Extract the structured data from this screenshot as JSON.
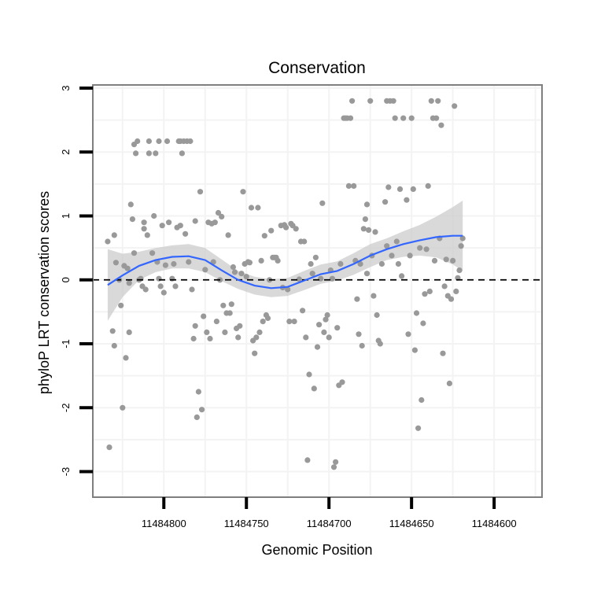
{
  "chart_data": {
    "type": "scatter",
    "title": "Conservation",
    "xlabel": "Genomic Position",
    "ylabel": "phyloP LRT conservation scores",
    "xlim": [
      11484843,
      11484571
    ],
    "x_reversed": true,
    "ylim": [
      -3.4,
      3.05
    ],
    "x_ticks": [
      11484800,
      11484750,
      11484700,
      11484650,
      11484600
    ],
    "x_tick_labels": [
      "11484800",
      "11484750",
      "11484700",
      "11484650",
      "11484600"
    ],
    "y_ticks": [
      -3,
      -2,
      -1,
      0,
      1,
      2,
      3
    ],
    "y_tick_labels": [
      "-3",
      "-2",
      "-1",
      "0",
      "1",
      "2",
      "3"
    ],
    "reference_line": 0,
    "colors": {
      "points": "#999999",
      "smooth_line": "#3366ff",
      "confidence_band": "#cccccc",
      "panel_border": "#7f7f7f",
      "grid": "#f3f3f3"
    },
    "points": [
      [
        11484834,
        0.6
      ],
      [
        11484833,
        -2.62
      ],
      [
        11484831,
        -0.8
      ],
      [
        11484830,
        -1.03
      ],
      [
        11484830,
        0.7
      ],
      [
        11484829,
        0.27
      ],
      [
        11484827,
        0
      ],
      [
        11484826,
        -0.4
      ],
      [
        11484825,
        -2.0
      ],
      [
        11484824,
        0.22
      ],
      [
        11484823,
        -1.22
      ],
      [
        11484822,
        0.18
      ],
      [
        11484821,
        -0.82
      ],
      [
        11484821,
        -0.05
      ],
      [
        11484820,
        1.18
      ],
      [
        11484819,
        0.95
      ],
      [
        11484818,
        0.42
      ],
      [
        11484818,
        2.12
      ],
      [
        11484817,
        1.98
      ],
      [
        11484816,
        2.17
      ],
      [
        11484815,
        0
      ],
      [
        11484814,
        0.02
      ],
      [
        11484813,
        -0.1
      ],
      [
        11484812,
        0.8
      ],
      [
        11484812,
        0.9
      ],
      [
        11484811,
        -0.15
      ],
      [
        11484810,
        0.7
      ],
      [
        11484809,
        1.98
      ],
      [
        11484809,
        2.17
      ],
      [
        11484807,
        0.42
      ],
      [
        11484806,
        1.0
      ],
      [
        11484805,
        1.98
      ],
      [
        11484804,
        0.28
      ],
      [
        11484803,
        0.02
      ],
      [
        11484803,
        2.17
      ],
      [
        11484802,
        -0.1
      ],
      [
        11484801,
        0.85
      ],
      [
        11484800,
        -0.2
      ],
      [
        11484799,
        0.23
      ],
      [
        11484798,
        2.17
      ],
      [
        11484797,
        0.9
      ],
      [
        11484795,
        0.02
      ],
      [
        11484794,
        0.25
      ],
      [
        11484793,
        -0.1
      ],
      [
        11484792,
        0.82
      ],
      [
        11484791,
        2.17
      ],
      [
        11484790,
        0.85
      ],
      [
        11484790,
        2.17
      ],
      [
        11484789,
        1.98
      ],
      [
        11484788,
        2.17
      ],
      [
        11484787,
        0.72
      ],
      [
        11484786,
        2.17
      ],
      [
        11484785,
        0.28
      ],
      [
        11484784,
        2.17
      ],
      [
        11484783,
        -0.15
      ],
      [
        11484782,
        -0.92
      ],
      [
        11484781,
        0.92
      ],
      [
        11484781,
        -0.72
      ],
      [
        11484780,
        -2.15
      ],
      [
        11484779,
        -1.75
      ],
      [
        11484778,
        1.38
      ],
      [
        11484777,
        -2.03
      ],
      [
        11484776,
        -0.57
      ],
      [
        11484775,
        0.16
      ],
      [
        11484774,
        -0.82
      ],
      [
        11484773,
        0.9
      ],
      [
        11484772,
        -0.92
      ],
      [
        11484771,
        0.88
      ],
      [
        11484770,
        0.28
      ],
      [
        11484769,
        0.9
      ],
      [
        11484768,
        -0.65
      ],
      [
        11484767,
        1.05
      ],
      [
        11484766,
        0.0
      ],
      [
        11484765,
        0.99
      ],
      [
        11484764,
        -0.4
      ],
      [
        11484763,
        -0.82
      ],
      [
        11484762,
        -0.52
      ],
      [
        11484761,
        0.7
      ],
      [
        11484760,
        -0.52
      ],
      [
        11484759,
        -0.38
      ],
      [
        11484758,
        0.2
      ],
      [
        11484757,
        0.12
      ],
      [
        11484756,
        -0.76
      ],
      [
        11484755,
        -0.9
      ],
      [
        11484754,
        -0.72
      ],
      [
        11484753,
        0.1
      ],
      [
        11484752,
        1.38
      ],
      [
        11484751,
        0.25
      ],
      [
        11484750,
        0.05
      ],
      [
        11484749,
        0.28
      ],
      [
        11484748,
        0.27
      ],
      [
        11484747,
        1.13
      ],
      [
        11484746,
        -0.95
      ],
      [
        11484745,
        -1.15
      ],
      [
        11484744,
        -0.9
      ],
      [
        11484743,
        1.13
      ],
      [
        11484742,
        -0.82
      ],
      [
        11484741,
        0.3
      ],
      [
        11484740,
        -0.65
      ],
      [
        11484739,
        0.69
      ],
      [
        11484738,
        -0.55
      ],
      [
        11484737,
        -0.6
      ],
      [
        11484736,
        0.0
      ],
      [
        11484735,
        0.77
      ],
      [
        11484734,
        0.35
      ],
      [
        11484733,
        0.35
      ],
      [
        11484732,
        0.35
      ],
      [
        11484731,
        0.3
      ],
      [
        11484729,
        0.85
      ],
      [
        11484728,
        -0.12
      ],
      [
        11484727,
        0.86
      ],
      [
        11484726,
        0.82
      ],
      [
        11484725,
        -0.15
      ],
      [
        11484724,
        -0.65
      ],
      [
        11484723,
        0.88
      ],
      [
        11484722,
        0.85
      ],
      [
        11484721,
        -0.65
      ],
      [
        11484720,
        0.8
      ],
      [
        11484718,
        0.01
      ],
      [
        11484717,
        0.6
      ],
      [
        11484716,
        -0.48
      ],
      [
        11484715,
        0.6
      ],
      [
        11484714,
        -0.9
      ],
      [
        11484713,
        -2.82
      ],
      [
        11484712,
        -1.48
      ],
      [
        11484711,
        0.25
      ],
      [
        11484710,
        0.1
      ],
      [
        11484709,
        -1.7
      ],
      [
        11484708,
        0.35
      ],
      [
        11484707,
        -1.05
      ],
      [
        11484706,
        -0.7
      ],
      [
        11484705,
        0.02
      ],
      [
        11484704,
        1.2
      ],
      [
        11484703,
        -0.82
      ],
      [
        11484702,
        -0.62
      ],
      [
        11484701,
        -0.55
      ],
      [
        11484700,
        -0.9
      ],
      [
        11484699,
        0.15
      ],
      [
        11484698,
        0.02
      ],
      [
        11484697,
        -2.93
      ],
      [
        11484696,
        -2.85
      ],
      [
        11484695,
        -0.75
      ],
      [
        11484694,
        -1.65
      ],
      [
        11484693,
        0.25
      ],
      [
        11484692,
        -1.6
      ],
      [
        11484691,
        2.53
      ],
      [
        11484690,
        2.53
      ],
      [
        11484689,
        2.53
      ],
      [
        11484688,
        1.47
      ],
      [
        11484687,
        2.53
      ],
      [
        11484686,
        2.8
      ],
      [
        11484685,
        1.47
      ],
      [
        11484684,
        0.3
      ],
      [
        11484683,
        -0.3
      ],
      [
        11484682,
        -0.85
      ],
      [
        11484681,
        0.25
      ],
      [
        11484680,
        -1.03
      ],
      [
        11484679,
        0.8
      ],
      [
        11484678,
        0.95
      ],
      [
        11484677,
        0.1
      ],
      [
        11484677,
        1.18
      ],
      [
        11484676,
        0.78
      ],
      [
        11484675,
        2.8
      ],
      [
        11484674,
        0.38
      ],
      [
        11484673,
        -0.25
      ],
      [
        11484672,
        0.75
      ],
      [
        11484671,
        -0.55
      ],
      [
        11484670,
        -0.95
      ],
      [
        11484669,
        -1.0
      ],
      [
        11484668,
        0.25
      ],
      [
        11484666,
        1.22
      ],
      [
        11484665,
        2.8
      ],
      [
        11484665,
        0.53
      ],
      [
        11484664,
        1.45
      ],
      [
        11484663,
        2.8
      ],
      [
        11484662,
        0.38
      ],
      [
        11484661,
        2.8
      ],
      [
        11484660,
        2.53
      ],
      [
        11484659,
        0.6
      ],
      [
        11484658,
        0.25
      ],
      [
        11484657,
        1.42
      ],
      [
        11484656,
        0.06
      ],
      [
        11484655,
        2.53
      ],
      [
        11484653,
        1.25
      ],
      [
        11484652,
        -0.85
      ],
      [
        11484651,
        0.38
      ],
      [
        11484650,
        2.53
      ],
      [
        11484649,
        1.42
      ],
      [
        11484648,
        -1.1
      ],
      [
        11484647,
        -0.52
      ],
      [
        11484646,
        -2.32
      ],
      [
        11484645,
        0.5
      ],
      [
        11484644,
        -1.88
      ],
      [
        11484643,
        -0.68
      ],
      [
        11484642,
        -0.22
      ],
      [
        11484641,
        0.48
      ],
      [
        11484640,
        1.47
      ],
      [
        11484639,
        -0.18
      ],
      [
        11484638,
        2.8
      ],
      [
        11484637,
        2.53
      ],
      [
        11484636,
        0.3
      ],
      [
        11484635,
        2.53
      ],
      [
        11484634,
        2.8
      ],
      [
        11484633,
        0.65
      ],
      [
        11484632,
        2.42
      ],
      [
        11484631,
        -1.15
      ],
      [
        11484630,
        -0.1
      ],
      [
        11484629,
        0.32
      ],
      [
        11484628,
        -0.25
      ],
      [
        11484627,
        -1.62
      ],
      [
        11484626,
        -0.3
      ],
      [
        11484625,
        0.3
      ],
      [
        11484624,
        2.72
      ],
      [
        11484623,
        -0.18
      ],
      [
        11484622,
        0.03
      ],
      [
        11484621,
        0.15
      ],
      [
        11484620,
        0.53
      ],
      [
        11484619,
        0.65
      ]
    ],
    "smooth": {
      "x": [
        11484834,
        11484825,
        11484815,
        11484805,
        11484795,
        11484785,
        11484775,
        11484765,
        11484755,
        11484745,
        11484735,
        11484725,
        11484715,
        11484705,
        11484695,
        11484685,
        11484675,
        11484665,
        11484655,
        11484645,
        11484635,
        11484625,
        11484619
      ],
      "y": [
        -0.08,
        0.07,
        0.22,
        0.31,
        0.36,
        0.37,
        0.31,
        0.15,
        0.0,
        -0.09,
        -0.13,
        -0.11,
        -0.01,
        0.09,
        0.14,
        0.25,
        0.38,
        0.48,
        0.56,
        0.62,
        0.67,
        0.69,
        0.69
      ],
      "lower": [
        -0.64,
        -0.27,
        0.0,
        0.12,
        0.18,
        0.18,
        0.12,
        -0.02,
        -0.14,
        -0.23,
        -0.27,
        -0.25,
        -0.16,
        -0.06,
        -0.01,
        0.08,
        0.2,
        0.31,
        0.36,
        0.38,
        0.35,
        0.24,
        0.14
      ],
      "upper": [
        0.48,
        0.41,
        0.44,
        0.5,
        0.54,
        0.56,
        0.5,
        0.32,
        0.14,
        0.05,
        0.01,
        0.03,
        0.14,
        0.24,
        0.29,
        0.42,
        0.56,
        0.65,
        0.76,
        0.86,
        0.99,
        1.14,
        1.24
      ]
    }
  }
}
